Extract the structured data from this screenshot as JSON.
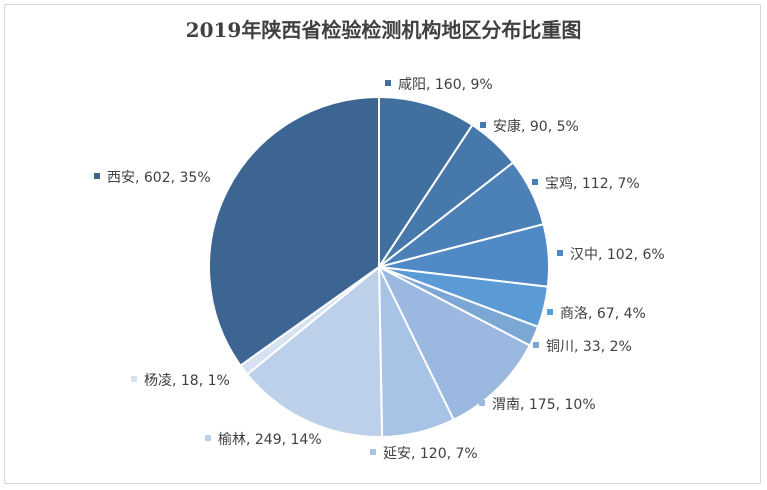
{
  "chart_data": {
    "type": "pie",
    "title": "2019年陕西省检验检测机构地区分布比重图",
    "slices": [
      {
        "name": "咸阳",
        "value": 160,
        "percent": "9%",
        "label": "咸阳, 160, 9%",
        "color": "#41709e"
      },
      {
        "name": "安康",
        "value": 90,
        "percent": "5%",
        "label": "安康, 90, 5%",
        "color": "#4678ab"
      },
      {
        "name": "宝鸡",
        "value": 112,
        "percent": "7%",
        "label": "宝鸡, 112, 7%",
        "color": "#4b81b7"
      },
      {
        "name": "汉中",
        "value": 102,
        "percent": "6%",
        "label": "汉中, 102, 6%",
        "color": "#4f8ac6"
      },
      {
        "name": "商洛",
        "value": 67,
        "percent": "4%",
        "label": "商洛, 67, 4%",
        "color": "#5b9bd5"
      },
      {
        "name": "铜川",
        "value": 33,
        "percent": "2%",
        "label": "铜川, 33, 2%",
        "color": "#7aa7d4"
      },
      {
        "name": "渭南",
        "value": 175,
        "percent": "10%",
        "label": "渭南, 175, 10%",
        "color": "#9bb8e0"
      },
      {
        "name": "延安",
        "value": 120,
        "percent": "7%",
        "label": "延安, 120, 7%",
        "color": "#a9c3e6"
      },
      {
        "name": "榆林",
        "value": 249,
        "percent": "14%",
        "label": "榆林, 249, 14%",
        "color": "#bcd0ea"
      },
      {
        "name": "杨凌",
        "value": 18,
        "percent": "1%",
        "label": "杨凌, 18, 1%",
        "color": "#d6e2f1"
      },
      {
        "name": "西安",
        "value": 602,
        "percent": "35%",
        "label": "西安, 602, 35%",
        "color": "#3d6592"
      }
    ]
  }
}
